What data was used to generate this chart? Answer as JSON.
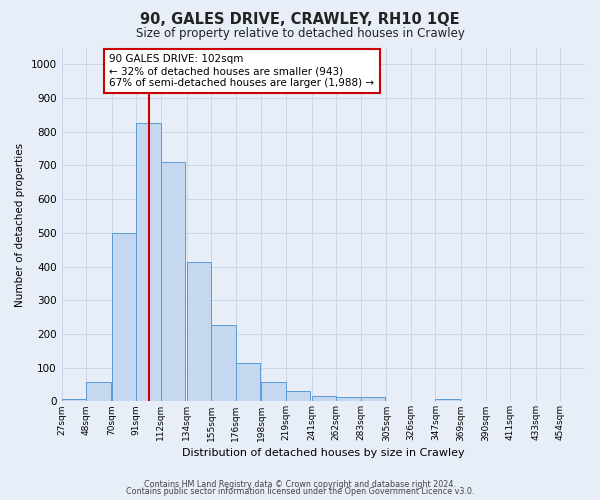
{
  "title": "90, GALES DRIVE, CRAWLEY, RH10 1QE",
  "subtitle": "Size of property relative to detached houses in Crawley",
  "xlabel": "Distribution of detached houses by size in Crawley",
  "ylabel": "Number of detached properties",
  "bin_labels": [
    "27sqm",
    "48sqm",
    "70sqm",
    "91sqm",
    "112sqm",
    "134sqm",
    "155sqm",
    "176sqm",
    "198sqm",
    "219sqm",
    "241sqm",
    "262sqm",
    "283sqm",
    "305sqm",
    "326sqm",
    "347sqm",
    "369sqm",
    "390sqm",
    "411sqm",
    "433sqm",
    "454sqm"
  ],
  "bar_heights": [
    8,
    57,
    500,
    825,
    710,
    415,
    228,
    115,
    57,
    30,
    15,
    12,
    12,
    0,
    0,
    8,
    0,
    0,
    0,
    0,
    0
  ],
  "bar_color": "#c5d8f0",
  "bar_edge_color": "#5b9bd5",
  "ylim": [
    0,
    1050
  ],
  "yticks": [
    0,
    100,
    200,
    300,
    400,
    500,
    600,
    700,
    800,
    900,
    1000
  ],
  "annotation_text_line1": "90 GALES DRIVE: 102sqm",
  "annotation_text_line2": "← 32% of detached houses are smaller (943)",
  "annotation_text_line3": "67% of semi-detached houses are larger (1,988) →",
  "annotation_box_color": "#ffffff",
  "annotation_border_color": "#cc0000",
  "vline_color": "#cc0000",
  "footer_line1": "Contains HM Land Registry data © Crown copyright and database right 2024.",
  "footer_line2": "Contains public sector information licensed under the Open Government Licence v3.0.",
  "grid_color": "#ccd6e8",
  "background_color": "#e8eef8"
}
